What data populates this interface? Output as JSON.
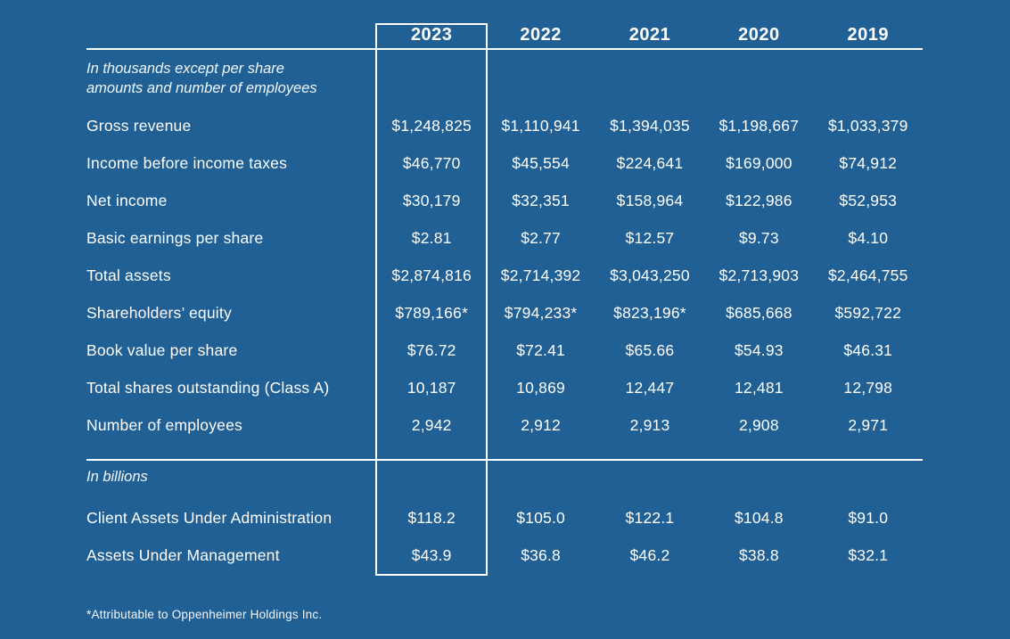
{
  "page": {
    "background_color": "#216095",
    "text_color": "#FFFFFF",
    "highlight_border_color": "#FFFFFF"
  },
  "table": {
    "years": [
      "2023",
      "2022",
      "2021",
      "2020",
      "2019"
    ],
    "section1": {
      "note_lines": [
        "In thousands except per share",
        "amounts and number of employees"
      ],
      "rows": [
        {
          "label": "Gross revenue",
          "values": [
            "$1,248,825",
            "$1,110,941",
            "$1,394,035",
            "$1,198,667",
            "$1,033,379"
          ]
        },
        {
          "label": "Income before income taxes",
          "values": [
            "$46,770",
            "$45,554",
            "$224,641",
            "$169,000",
            "$74,912"
          ]
        },
        {
          "label": "Net income",
          "values": [
            "$30,179",
            "$32,351",
            "$158,964",
            "$122,986",
            "$52,953"
          ]
        },
        {
          "label": "Basic earnings per share",
          "values": [
            "$2.81",
            "$2.77",
            "$12.57",
            "$9.73",
            "$4.10"
          ]
        },
        {
          "label": "Total assets",
          "values": [
            "$2,874,816",
            "$2,714,392",
            "$3,043,250",
            "$2,713,903",
            "$2,464,755"
          ]
        },
        {
          "label": "Shareholders’ equity",
          "values": [
            "$789,166*",
            "$794,233*",
            "$823,196*",
            "$685,668",
            "$592,722"
          ]
        },
        {
          "label": "Book value per share",
          "values": [
            "$76.72",
            "$72.41",
            "$65.66",
            "$54.93",
            "$46.31"
          ]
        },
        {
          "label": "Total shares outstanding (Class A)",
          "values": [
            "10,187",
            "10,869",
            "12,447",
            "12,481",
            "12,798"
          ]
        },
        {
          "label": "Number of employees",
          "values": [
            "2,942",
            "2,912",
            "2,913",
            "2,908",
            "2,971"
          ]
        }
      ]
    },
    "section2": {
      "note": "In billions",
      "rows": [
        {
          "label": "Client Assets Under Administration",
          "values": [
            "$118.2",
            "$105.0",
            "$122.1",
            "$104.8",
            "$91.0"
          ]
        },
        {
          "label": "Assets Under Management",
          "values": [
            "$43.9",
            "$36.8",
            "$46.2",
            "$38.8",
            "$32.1"
          ]
        }
      ]
    },
    "footnote": "*Attributable to Oppenheimer Holdings Inc."
  }
}
